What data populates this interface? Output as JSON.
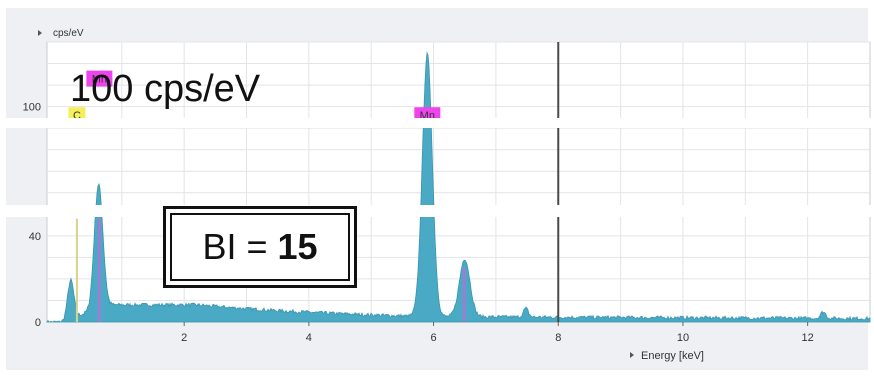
{
  "annotations": {
    "count_label": "100 cps/eV",
    "bi_prefix": "BI = ",
    "bi_value": "15"
  },
  "chart_data": {
    "type": "area",
    "xlabel": "Energy [keV]",
    "ylabel": "cps/eV",
    "xlim": [
      -0.2,
      13
    ],
    "ylim": [
      0,
      130
    ],
    "x_ticks": [
      2,
      4,
      6,
      8,
      10,
      12
    ],
    "y_ticks": [
      {
        "value": 0,
        "label": "0"
      },
      {
        "value": 40,
        "label": "40"
      },
      {
        "value": 100,
        "label": "100"
      }
    ],
    "grid": true,
    "fill_color": "#4aa9c4",
    "marker_line_keV": 8.0,
    "peaks": [
      {
        "x": 0.18,
        "height": 18,
        "width": 0.05
      },
      {
        "x": 0.6,
        "height": 35,
        "width": 0.06
      },
      {
        "x": 0.66,
        "height": 30,
        "width": 0.06
      },
      {
        "x": 5.9,
        "height": 122,
        "width": 0.08
      },
      {
        "x": 6.5,
        "height": 27,
        "width": 0.085
      },
      {
        "x": 7.48,
        "height": 4,
        "width": 0.04
      },
      {
        "x": 12.25,
        "height": 3,
        "width": 0.04
      }
    ],
    "element_markers": [
      {
        "element": "C",
        "energy": 0.28,
        "height": 48,
        "tag_color": "#f3f05a",
        "line_color": "#d9d38a",
        "label_level": 96
      },
      {
        "element": "Mn",
        "energy": 0.64,
        "height": 48,
        "tag_color": "#ee44ee",
        "line_color": "#c46ad6",
        "label_level": 113
      },
      {
        "element": "Mn",
        "energy": 5.9,
        "height": 0,
        "tag_color": "#ee44ee",
        "line_color": "#c46ad6",
        "label_level": 96
      },
      {
        "element": "Mn",
        "energy": 6.49,
        "height": 25,
        "tag_color": "#ee44ee",
        "line_color": "#c46ad6",
        "label_level": null
      }
    ]
  }
}
